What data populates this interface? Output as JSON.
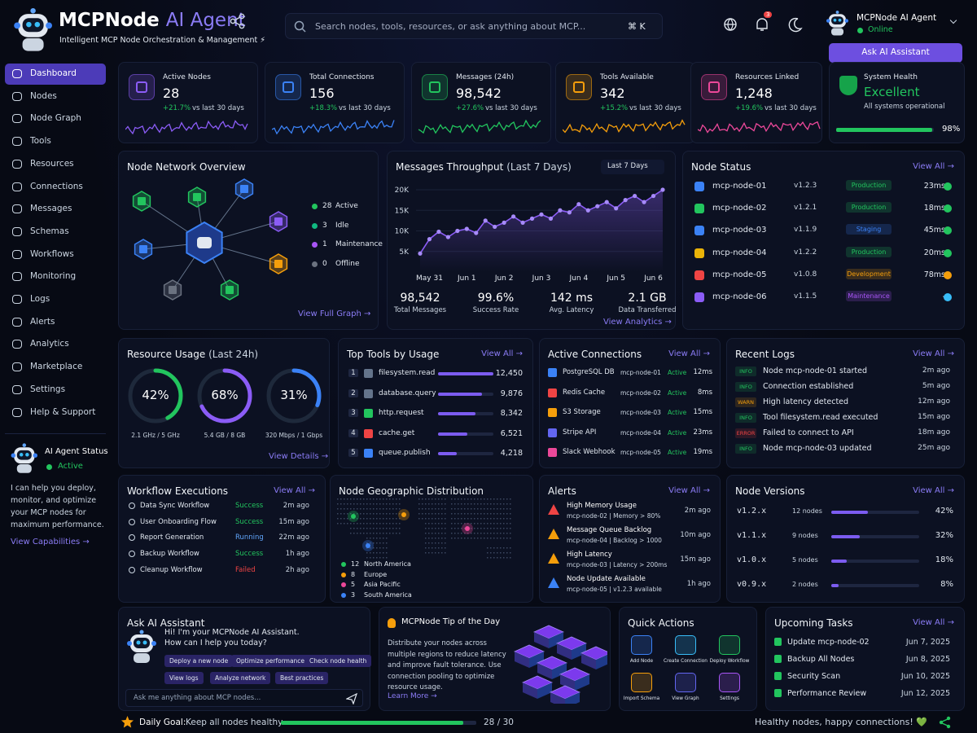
{
  "header": {
    "title_main": "MCPNode",
    "title_accent": "AI Agent",
    "subtitle": "Intelligent MCP Node Orchestration & Management ⚡",
    "search": "Search nodes, tools, resources, or ask anything about MCP...",
    "shortcut": "⌘ K",
    "badge": "3",
    "user": "MCPNode AI Agent",
    "status": "Online",
    "button": "Ask AI Assistant"
  },
  "sidebar": {
    "nav": [
      "Dashboard",
      "Nodes",
      "Node Graph",
      "Tools",
      "Resources",
      "Connections",
      "Messages",
      "Schemas",
      "Workflows",
      "Monitoring",
      "Logs",
      "Alerts",
      "Analytics",
      "Marketplace",
      "Settings",
      "Help & Support"
    ],
    "agent": {
      "title": "AI Agent Status",
      "status": "Active",
      "text": "I can help you deploy, monitor, and optimize your MCP nodes for maximum performance.",
      "link": "View Capabilities →"
    }
  },
  "stats": [
    {
      "label": "Active Nodes",
      "value": "28",
      "change": "+21.7%",
      "period": "vs last 30 days",
      "color": "#8b5cf6"
    },
    {
      "label": "Total Connections",
      "value": "156",
      "change": "+18.3%",
      "period": "vs last 30 days",
      "color": "#3b82f6"
    },
    {
      "label": "Messages (24h)",
      "value": "98,542",
      "change": "+27.6%",
      "period": "vs last 30 days",
      "color": "#22c55e"
    },
    {
      "label": "Tools Available",
      "value": "342",
      "change": "+15.2%",
      "period": "vs last 30 days",
      "color": "#f59e0b"
    },
    {
      "label": "Resources Linked",
      "value": "1,248",
      "change": "+19.6%",
      "period": "vs last 30 days",
      "color": "#ec4899"
    }
  ],
  "health": {
    "label": "System Health",
    "value": "Excellent",
    "text": "All systems operational",
    "percent": "98%"
  },
  "network": {
    "title": "Node Network Overview",
    "legend": [
      {
        "count": "28",
        "label": "Active",
        "color": "#22c55e"
      },
      {
        "count": "3",
        "label": "Idle",
        "color": "#10b981"
      },
      {
        "count": "1",
        "label": "Maintenance",
        "color": "#a855f7"
      },
      {
        "count": "0",
        "label": "Offline",
        "color": "#6b7280"
      }
    ],
    "link": "View Full Graph →"
  },
  "throughput": {
    "title": "Messages Throughput",
    "subtitle": "(Last 7 Days)",
    "range": "Last 7 Days",
    "chart": {
      "type": "line",
      "color": "#8b5cf6",
      "categories": [
        null,
        "May 31",
        null,
        null,
        null,
        "Jun 1",
        null,
        null,
        null,
        "Jun 2",
        null,
        null,
        null,
        "Jun 3",
        null,
        null,
        null,
        "Jun 4",
        null,
        null,
        null,
        "Jun 5",
        null,
        null,
        null,
        "Jun 6",
        null
      ],
      "values": [
        4500,
        8000,
        9800,
        8500,
        10000,
        10500,
        9500,
        12500,
        11000,
        12000,
        13500,
        12000,
        13000,
        14000,
        13000,
        15000,
        14500,
        16500,
        15000,
        16000,
        17000,
        15500,
        17500,
        18500,
        17000,
        18500,
        20000
      ],
      "ylim": [
        0,
        20000
      ],
      "yticks": [
        {
          "value": 5000,
          "label": "5K"
        },
        {
          "value": 10000,
          "label": "10K"
        },
        {
          "value": 15000,
          "label": "15K"
        },
        {
          "value": 20000,
          "label": "20K"
        }
      ]
    },
    "summary": [
      {
        "value": "98,542",
        "label": "Total Messages"
      },
      {
        "value": "99.6%",
        "label": "Success Rate"
      },
      {
        "value": "142 ms",
        "label": "Avg. Latency"
      },
      {
        "value": "2.1 GB",
        "label": "Data Transferred"
      }
    ],
    "link": "View Analytics →"
  },
  "node_status": {
    "title": "Node Status",
    "link": "View All →",
    "rows": [
      {
        "name": "mcp-node-01",
        "version": "v1.2.3",
        "env": "Production",
        "latency": "23ms",
        "icon_color": "#3b82f6",
        "env_color": "#22c55e",
        "color": "#22c55e"
      },
      {
        "name": "mcp-node-02",
        "version": "v1.2.1",
        "env": "Production",
        "latency": "18ms",
        "icon_color": "#22c55e",
        "env_color": "#22c55e",
        "color": "#22c55e"
      },
      {
        "name": "mcp-node-03",
        "version": "v1.1.9",
        "env": "Staging",
        "latency": "45ms",
        "icon_color": "#3b82f6",
        "env_color": "#3b82f6",
        "color": "#22c55e"
      },
      {
        "name": "mcp-node-04",
        "version": "v1.2.2",
        "env": "Production",
        "latency": "20ms",
        "icon_color": "#eab308",
        "env_color": "#22c55e",
        "color": "#22c55e"
      },
      {
        "name": "mcp-node-05",
        "version": "v1.0.8",
        "env": "Development",
        "latency": "78ms",
        "icon_color": "#ef4444",
        "env_color": "#f59e0b",
        "color": "#f59e0b"
      },
      {
        "name": "mcp-node-06",
        "version": "v1.1.5",
        "env": "Maintenance",
        "latency": "-",
        "icon_color": "#8b5cf6",
        "env_color": "#a855f7",
        "color": "#38bdf8"
      }
    ]
  },
  "resource_usage": {
    "title": "Resource Usage",
    "subtitle": "(Last 24h)",
    "gauges": [
      {
        "value": "42%",
        "detail": "2.1 GHz / 5 GHz",
        "color": "#22c55e"
      },
      {
        "value": "68%",
        "detail": "5.4 GB / 8 GB",
        "color": "#8b5cf6"
      },
      {
        "value": "31%",
        "detail": "320 Mbps / 1 Gbps",
        "color": "#3b82f6"
      }
    ],
    "link": "View Details →"
  },
  "top_tools": {
    "title": "Top Tools by Usage",
    "link": "View All →",
    "rows": [
      {
        "rank": "1",
        "name": "filesystem.read",
        "value": "12,450",
        "color": "#64748b"
      },
      {
        "rank": "2",
        "name": "database.query",
        "value": "9,876",
        "color": "#64748b"
      },
      {
        "rank": "3",
        "name": "http.request",
        "value": "8,342",
        "color": "#22c55e"
      },
      {
        "rank": "4",
        "name": "cache.get",
        "value": "6,521",
        "color": "#ef4444"
      },
      {
        "rank": "5",
        "name": "queue.publish",
        "value": "4,218",
        "color": "#3b82f6"
      }
    ]
  },
  "connections": {
    "title": "Active Connections",
    "link": "View All →",
    "rows": [
      {
        "name": "PostgreSQL DB",
        "node": "mcp-node-01",
        "status": "Active",
        "latency": "12ms",
        "color": "#3b82f6"
      },
      {
        "name": "Redis Cache",
        "node": "mcp-node-02",
        "status": "Active",
        "latency": "8ms",
        "color": "#ef4444"
      },
      {
        "name": "S3 Storage",
        "node": "mcp-node-03",
        "status": "Active",
        "latency": "15ms",
        "color": "#f59e0b"
      },
      {
        "name": "Stripe API",
        "node": "mcp-node-04",
        "status": "Active",
        "latency": "23ms",
        "color": "#6366f1"
      },
      {
        "name": "Slack Webhook",
        "node": "mcp-node-05",
        "status": "Active",
        "latency": "19ms",
        "color": "#ec4899"
      }
    ]
  },
  "logs": {
    "title": "Recent Logs",
    "link": "View All →",
    "rows": [
      {
        "level": "INFO",
        "message": "Node mcp-node-01 started",
        "time": "2m ago",
        "color": "#22c55e"
      },
      {
        "level": "INFO",
        "message": "Connection established",
        "time": "5m ago",
        "color": "#22c55e"
      },
      {
        "level": "WARN",
        "message": "High latency detected",
        "time": "12m ago",
        "color": "#f59e0b"
      },
      {
        "level": "INFO",
        "message": "Tool filesystem.read executed",
        "time": "15m ago",
        "color": "#22c55e"
      },
      {
        "level": "ERROR",
        "message": "Failed to connect to API",
        "time": "18m ago",
        "color": "#ef4444"
      },
      {
        "level": "INFO",
        "message": "Node mcp-node-03 updated",
        "time": "25m ago",
        "color": "#22c55e"
      }
    ]
  },
  "workflows": {
    "title": "Workflow Executions",
    "link": "View All →",
    "rows": [
      {
        "name": "Data Sync Workflow",
        "status": "Success",
        "time": "2m ago",
        "color": "#22c55e"
      },
      {
        "name": "User Onboarding Flow",
        "status": "Success",
        "time": "15m ago",
        "color": "#22c55e"
      },
      {
        "name": "Report Generation",
        "status": "Running",
        "time": "22m ago",
        "color": "#60a5fa"
      },
      {
        "name": "Backup Workflow",
        "status": "Success",
        "time": "1h ago",
        "color": "#22c55e"
      },
      {
        "name": "Cleanup Workflow",
        "status": "Failed",
        "time": "2h ago",
        "color": "#ef4444"
      }
    ]
  },
  "geo": {
    "title": "Node Geographic Distribution",
    "legend": [
      {
        "count": "12",
        "region": "North America",
        "color": "#22c55e"
      },
      {
        "count": "8",
        "region": "Europe",
        "color": "#f59e0b"
      },
      {
        "count": "5",
        "region": "Asia Pacific",
        "color": "#ec4899"
      },
      {
        "count": "3",
        "region": "South America",
        "color": "#3b82f6"
      }
    ]
  },
  "alerts": {
    "title": "Alerts",
    "link": "View All →",
    "rows": [
      {
        "title": "High Memory Usage",
        "detail": "mcp-node-02 | Memory > 80%",
        "time": "2m ago",
        "color": "#ef4444"
      },
      {
        "title": "Message Queue Backlog",
        "detail": "mcp-node-04 | Backlog > 1000",
        "time": "10m ago",
        "color": "#f59e0b"
      },
      {
        "title": "High Latency",
        "detail": "mcp-node-03 | Latency > 200ms",
        "time": "15m ago",
        "color": "#f59e0b"
      },
      {
        "title": "Node Update Available",
        "detail": "mcp-node-05 | v1.2.3 available",
        "time": "1h ago",
        "color": "#3b82f6"
      }
    ]
  },
  "versions": {
    "title": "Node Versions",
    "link": "View All →",
    "rows": [
      {
        "version": "v1.2.x",
        "nodes": "12 nodes",
        "percent": "42%"
      },
      {
        "version": "v1.1.x",
        "nodes": "9 nodes",
        "percent": "32%"
      },
      {
        "version": "v1.0.x",
        "nodes": "5 nodes",
        "percent": "18%"
      },
      {
        "version": "v0.9.x",
        "nodes": "2 nodes",
        "percent": "8%"
      }
    ]
  },
  "assistant": {
    "title": "Ask AI Assistant",
    "greeting": [
      "Hi! I'm your MCPNode AI Assistant.",
      "How can I help you today?"
    ],
    "chips": [
      "Deploy a new node",
      "Optimize performance",
      "Check node health",
      "View logs",
      "Analyze network",
      "Best practices"
    ],
    "input": "Ask me anything about MCP nodes..."
  },
  "tip": {
    "title": "MCPNode Tip of the Day",
    "text": "Distribute your nodes across multiple regions to reduce latency and improve fault tolerance. Use connection pooling to optimize resource usage.",
    "link": "Learn More →"
  },
  "quick": {
    "title": "Quick Actions",
    "actions": [
      {
        "label": "Add Node",
        "color": "#3b82f6"
      },
      {
        "label": "Create Connection",
        "color": "#38bdf8"
      },
      {
        "label": "Deploy Workflow",
        "color": "#22c55e"
      },
      {
        "label": "Import Schema",
        "color": "#f59e0b"
      },
      {
        "label": "View Graph",
        "color": "#6366f1"
      },
      {
        "label": "Settings",
        "color": "#a855f7"
      }
    ]
  },
  "tasks": {
    "title": "Upcoming Tasks",
    "link": "View All →",
    "rows": [
      {
        "name": "Update mcp-node-02",
        "date": "Jun 7, 2025"
      },
      {
        "name": "Backup All Nodes",
        "date": "Jun 8, 2025"
      },
      {
        "name": "Security Scan",
        "date": "Jun 10, 2025"
      },
      {
        "name": "Performance Review",
        "date": "Jun 12, 2025"
      }
    ]
  },
  "footer": {
    "goal_label": "Daily Goal:",
    "goal_text": "Keep all nodes healthy",
    "progress": "28 / 30",
    "message": "Healthy nodes, happy connections! 💚"
  }
}
